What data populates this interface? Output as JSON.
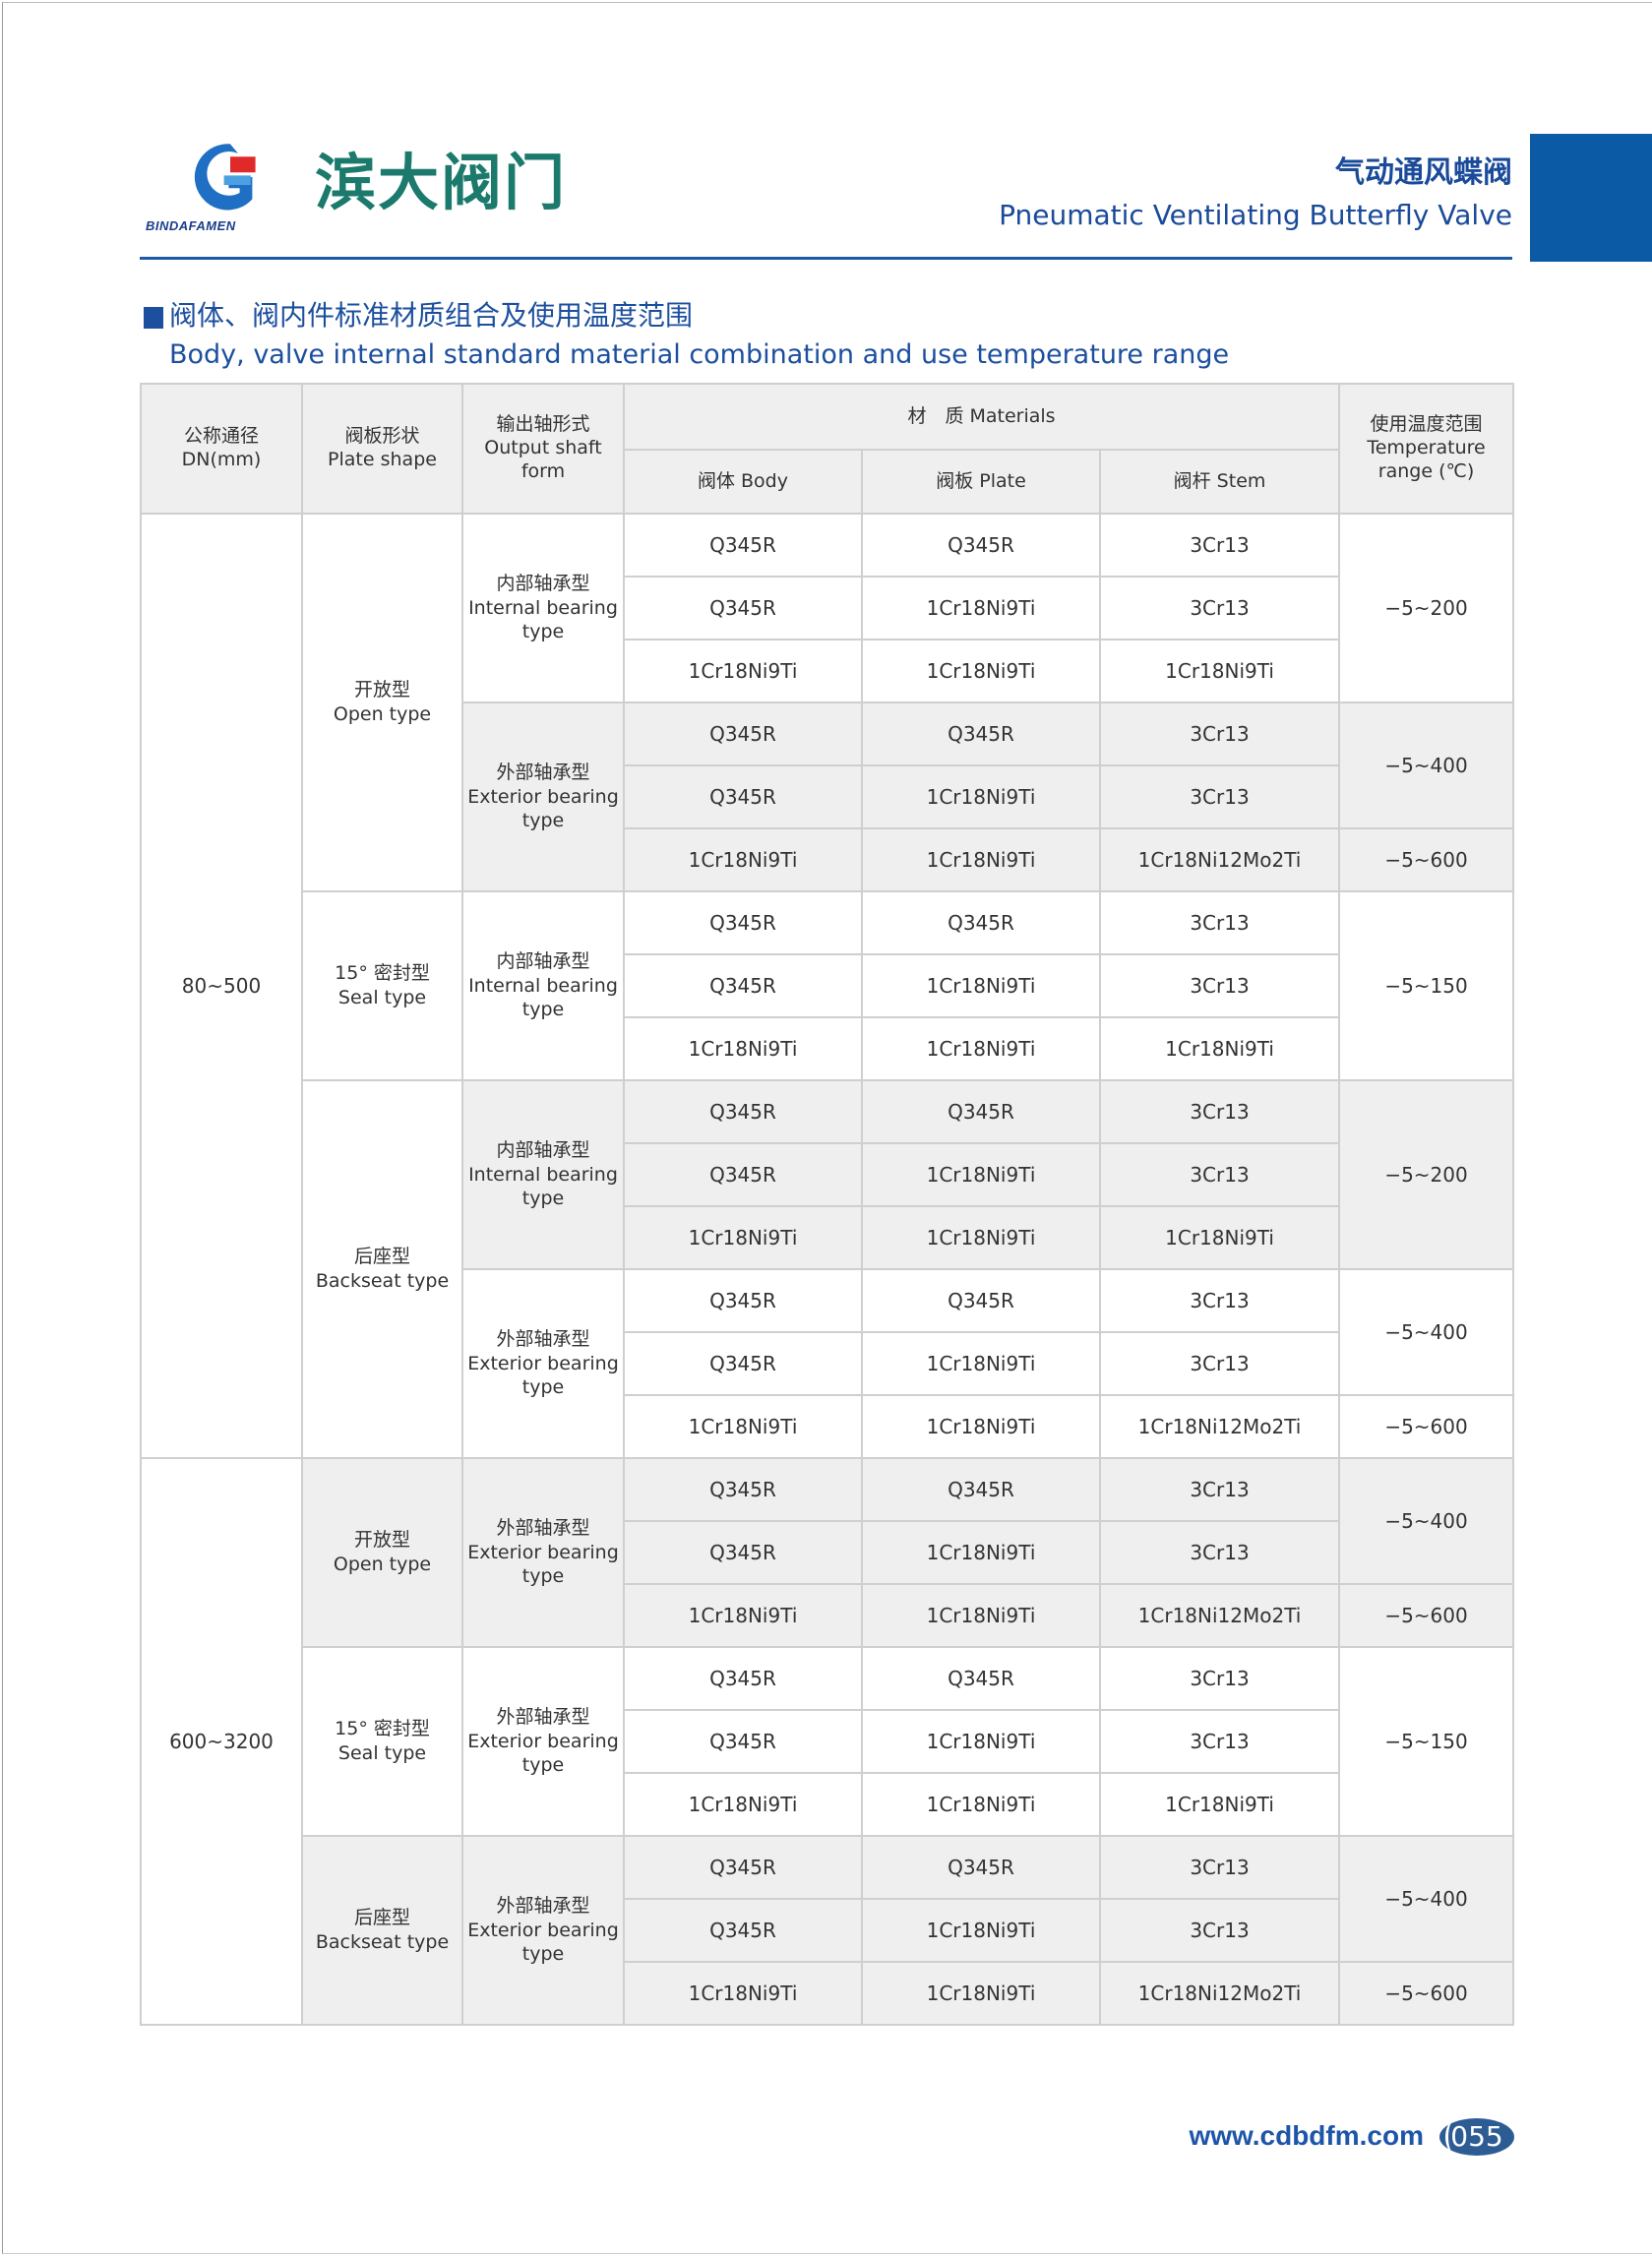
{
  "header": {
    "logo_text": "BINDAFAMEN",
    "brand": "滨大阀门",
    "title_cn": "气动通风蝶阀",
    "title_en": "Pneumatic Ventilating Butterfly Valve",
    "accent": "#0b5aa6"
  },
  "section": {
    "title_cn": "阀体、阀内件标准材质组合及使用温度范围",
    "title_en": "Body, valve internal standard material combination and use temperature range"
  },
  "table": {
    "header": {
      "dn_cn": "公称通径",
      "dn_en": "DN(mm)",
      "plate_cn": "阀板形状",
      "plate_en": "Plate shape",
      "shaft_cn": "输出轴形式",
      "shaft_en": "Output shaft form",
      "materials": "材　质 Materials",
      "body": "阀体 Body",
      "plate": "阀板 Plate",
      "stem": "阀杆 Stem",
      "temp_cn": "使用温度范围",
      "temp_en": "Temperature range (℃)"
    },
    "sections": [
      {
        "dn": "80~500",
        "plates": [
          {
            "cn": "开放型",
            "en": "Open type",
            "shaded": false,
            "shafts": [
              {
                "cn": "内部轴承型",
                "en": "Internal bearing type",
                "shaded": false,
                "rows": [
                  [
                    "Q345R",
                    "Q345R",
                    "3Cr13"
                  ],
                  [
                    "Q345R",
                    "1Cr18Ni9Ti",
                    "3Cr13"
                  ],
                  [
                    "1Cr18Ni9Ti",
                    "1Cr18Ni9Ti",
                    "1Cr18Ni9Ti"
                  ]
                ],
                "temps": [
                  {
                    "value": "−5~200",
                    "rows": 3
                  }
                ]
              },
              {
                "cn": "外部轴承型",
                "en": "Exterior bearing type",
                "shaded": true,
                "rows": [
                  [
                    "Q345R",
                    "Q345R",
                    "3Cr13"
                  ],
                  [
                    "Q345R",
                    "1Cr18Ni9Ti",
                    "3Cr13"
                  ],
                  [
                    "1Cr18Ni9Ti",
                    "1Cr18Ni9Ti",
                    "1Cr18Ni12Mo2Ti"
                  ]
                ],
                "temps": [
                  {
                    "value": "−5~400",
                    "rows": 2
                  },
                  {
                    "value": "−5~600",
                    "rows": 1
                  }
                ]
              }
            ]
          },
          {
            "cn": "15° 密封型",
            "en": "Seal type",
            "shaded": false,
            "shafts": [
              {
                "cn": "内部轴承型",
                "en": "Internal bearing type",
                "shaded": false,
                "rows": [
                  [
                    "Q345R",
                    "Q345R",
                    "3Cr13"
                  ],
                  [
                    "Q345R",
                    "1Cr18Ni9Ti",
                    "3Cr13"
                  ],
                  [
                    "1Cr18Ni9Ti",
                    "1Cr18Ni9Ti",
                    "1Cr18Ni9Ti"
                  ]
                ],
                "temps": [
                  {
                    "value": "−5~150",
                    "rows": 3
                  }
                ]
              }
            ]
          },
          {
            "cn": "后座型",
            "en": "Backseat type",
            "shaded": false,
            "shafts": [
              {
                "cn": "内部轴承型",
                "en": "Internal bearing type",
                "shaded": true,
                "rows": [
                  [
                    "Q345R",
                    "Q345R",
                    "3Cr13"
                  ],
                  [
                    "Q345R",
                    "1Cr18Ni9Ti",
                    "3Cr13"
                  ],
                  [
                    "1Cr18Ni9Ti",
                    "1Cr18Ni9Ti",
                    "1Cr18Ni9Ti"
                  ]
                ],
                "temps": [
                  {
                    "value": "−5~200",
                    "rows": 3
                  }
                ]
              },
              {
                "cn": "外部轴承型",
                "en": "Exterior bearing type",
                "shaded": false,
                "rows": [
                  [
                    "Q345R",
                    "Q345R",
                    "3Cr13"
                  ],
                  [
                    "Q345R",
                    "1Cr18Ni9Ti",
                    "3Cr13"
                  ],
                  [
                    "1Cr18Ni9Ti",
                    "1Cr18Ni9Ti",
                    "1Cr18Ni12Mo2Ti"
                  ]
                ],
                "temps": [
                  {
                    "value": "−5~400",
                    "rows": 2
                  },
                  {
                    "value": "−5~600",
                    "rows": 1
                  }
                ]
              }
            ]
          }
        ]
      },
      {
        "dn": "600~3200",
        "plates": [
          {
            "cn": "开放型",
            "en": "Open type",
            "shaded": true,
            "shafts": [
              {
                "cn": "外部轴承型",
                "en": "Exterior bearing type",
                "shaded": true,
                "rows": [
                  [
                    "Q345R",
                    "Q345R",
                    "3Cr13"
                  ],
                  [
                    "Q345R",
                    "1Cr18Ni9Ti",
                    "3Cr13"
                  ],
                  [
                    "1Cr18Ni9Ti",
                    "1Cr18Ni9Ti",
                    "1Cr18Ni12Mo2Ti"
                  ]
                ],
                "temps": [
                  {
                    "value": "−5~400",
                    "rows": 2
                  },
                  {
                    "value": "−5~600",
                    "rows": 1
                  }
                ]
              }
            ]
          },
          {
            "cn": "15° 密封型",
            "en": "Seal type",
            "shaded": false,
            "shafts": [
              {
                "cn": "外部轴承型",
                "en": "Exterior bearing type",
                "shaded": false,
                "rows": [
                  [
                    "Q345R",
                    "Q345R",
                    "3Cr13"
                  ],
                  [
                    "Q345R",
                    "1Cr18Ni9Ti",
                    "3Cr13"
                  ],
                  [
                    "1Cr18Ni9Ti",
                    "1Cr18Ni9Ti",
                    "1Cr18Ni9Ti"
                  ]
                ],
                "temps": [
                  {
                    "value": "−5~150",
                    "rows": 3
                  }
                ]
              }
            ]
          },
          {
            "cn": "后座型",
            "en": "Backseat type",
            "shaded": true,
            "shafts": [
              {
                "cn": "外部轴承型",
                "en": "Exterior bearing type",
                "shaded": true,
                "rows": [
                  [
                    "Q345R",
                    "Q345R",
                    "3Cr13"
                  ],
                  [
                    "Q345R",
                    "1Cr18Ni9Ti",
                    "3Cr13"
                  ],
                  [
                    "1Cr18Ni9Ti",
                    "1Cr18Ni9Ti",
                    "1Cr18Ni12Mo2Ti"
                  ]
                ],
                "temps": [
                  {
                    "value": "−5~400",
                    "rows": 2
                  },
                  {
                    "value": "−5~600",
                    "rows": 1
                  }
                ]
              }
            ]
          }
        ]
      }
    ]
  },
  "footer": {
    "url": "www.cdbdfm.com",
    "page": "055"
  }
}
